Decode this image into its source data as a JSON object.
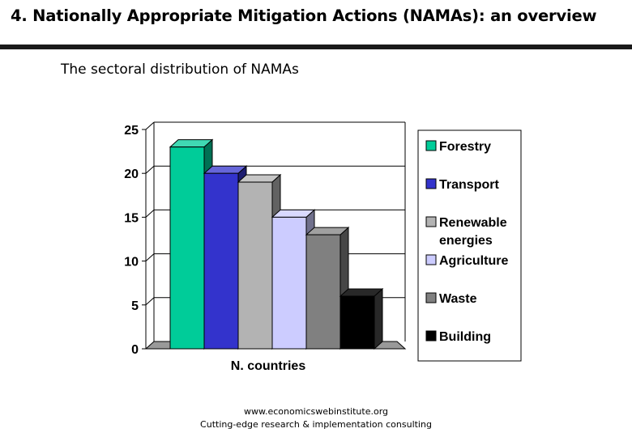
{
  "header": {
    "title": "4. Nationally Appropriate Mitigation Actions (NAMAs): an overview",
    "subtitle": "The sectoral distribution of NAMAs"
  },
  "chart_data": {
    "type": "bar",
    "title": "The sectoral distribution of NAMAs",
    "xlabel": "N. countries",
    "ylabel": "",
    "ylim": [
      0,
      25
    ],
    "yticks": [
      0,
      5,
      10,
      15,
      20,
      25
    ],
    "grid": true,
    "legend_position": "right",
    "categories": [
      "N. countries"
    ],
    "series": [
      {
        "name": "Forestry",
        "values": [
          23
        ],
        "color": "#00cc99"
      },
      {
        "name": "Transport",
        "values": [
          20
        ],
        "color": "#3333cc"
      },
      {
        "name": "Renewable energies",
        "values": [
          19
        ],
        "color": "#b3b3b3"
      },
      {
        "name": "Agriculture",
        "values": [
          15
        ],
        "color": "#ccccff"
      },
      {
        "name": "Waste",
        "values": [
          13
        ],
        "color": "#808080"
      },
      {
        "name": "Building",
        "values": [
          6
        ],
        "color": "#000000"
      }
    ]
  },
  "legend": {
    "items": [
      {
        "lines": [
          "Forestry"
        ]
      },
      {
        "lines": [
          "Transport"
        ]
      },
      {
        "lines": [
          "Renewable",
          "energies"
        ]
      },
      {
        "lines": [
          "Agriculture"
        ]
      },
      {
        "lines": [
          "Waste"
        ]
      },
      {
        "lines": [
          "Building"
        ]
      }
    ]
  },
  "footer": {
    "url": "www.economicswebinstitute.org",
    "tagline": "Cutting-edge research & implementation consulting"
  }
}
